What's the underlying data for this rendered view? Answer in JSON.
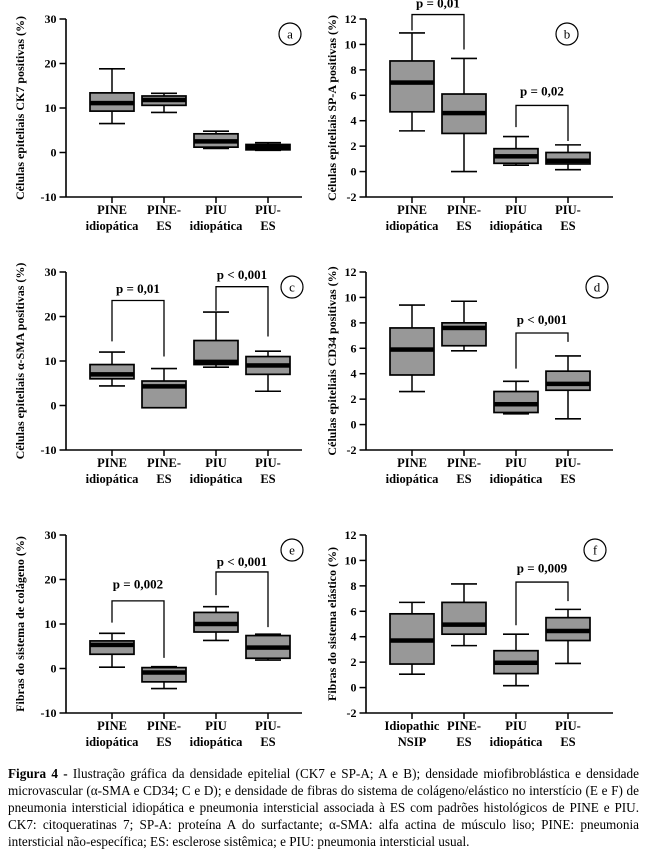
{
  "colors": {
    "box_fill": "#989898",
    "box_stroke": "#000000",
    "median": "#000000",
    "text": "#000000",
    "background": "#ffffff"
  },
  "caption": {
    "label": "Figura 4 -",
    "text": " Ilustração gráfica da densidade epitelial (CK7 e SP-A; A e B); densidade miofibroblástica e densidade microvascular (α-SMA e CD34; C e D); e densidade de fibras do sistema de colágeno/elástico no interstício (E e F) de pneumonia intersticial idiopática e pneumonia intersticial associada à ES com padrões histológicos de PINE e PIU. CK7: citoqueratinas 7; SP-A: proteína A do surfactante; α-SMA: alfa actina de músculo liso; PINE: pneumonia intersticial não-específica; ES: esclerose sistêmica; e PIU: pneumonia intersticial usual."
  },
  "chart_data": [
    {
      "type": "box",
      "panel_label": "a",
      "ylabel": "Células epiteliais CK7 positivas (%)",
      "ylim": [
        -10,
        30
      ],
      "yticks": [
        30,
        20,
        10,
        0,
        -10
      ],
      "categories": [
        [
          "PINE",
          "idiopática"
        ],
        [
          "PINE-",
          "ES"
        ],
        [
          "PIU",
          "idiopática"
        ],
        [
          "PIU-",
          "ES"
        ]
      ],
      "boxes": [
        {
          "low": 6.5,
          "q1": 9.3,
          "median": 11.1,
          "q3": 13.4,
          "high": 18.8
        },
        {
          "low": 9.0,
          "q1": 10.6,
          "median": 11.8,
          "q3": 12.7,
          "high": 13.3
        },
        {
          "low": 0.9,
          "q1": 1.2,
          "median": 2.5,
          "q3": 4.2,
          "high": 4.8
        },
        {
          "low": 0.5,
          "q1": 0.6,
          "median": 1.2,
          "q3": 1.8,
          "high": 2.2
        }
      ],
      "significance": []
    },
    {
      "type": "box",
      "panel_label": "b",
      "ylabel": "Células epiteliais SP-A positivas (%)",
      "ylim": [
        -2,
        12
      ],
      "yticks": [
        12,
        10,
        8,
        6,
        4,
        2,
        0,
        -2
      ],
      "categories": [
        [
          "PINE",
          "idiopática"
        ],
        [
          "PINE-",
          "ES"
        ],
        [
          "PIU",
          "idiopática"
        ],
        [
          "PIU-",
          "ES"
        ]
      ],
      "boxes": [
        {
          "low": 3.2,
          "q1": 4.7,
          "median": 7.0,
          "q3": 8.7,
          "high": 10.9
        },
        {
          "low": 0.0,
          "q1": 3.0,
          "median": 4.6,
          "q3": 6.1,
          "high": 8.9
        },
        {
          "low": 0.5,
          "q1": 0.65,
          "median": 1.2,
          "q3": 1.8,
          "high": 2.75
        },
        {
          "low": 0.15,
          "q1": 0.6,
          "median": 0.85,
          "q3": 1.5,
          "high": 2.1
        }
      ],
      "significance": [
        {
          "from": 0,
          "to": 1,
          "label": "p = 0,01",
          "bar": 12.35,
          "dropFrom": 11.1,
          "dropTo": 9.6,
          "labelV": 12.9
        },
        {
          "from": 2,
          "to": 3,
          "label": "p = 0,02",
          "bar": 5.2,
          "dropFrom": 3.5,
          "dropTo": 2.4,
          "labelV": 6.0
        }
      ]
    },
    {
      "type": "box",
      "panel_label": "c",
      "ylabel": "Células epiteliais α-SMA positivas (%)",
      "ylim": [
        -10,
        30
      ],
      "yticks": [
        30,
        20,
        10,
        0,
        -10
      ],
      "categories": [
        [
          "PINE",
          "idiopática"
        ],
        [
          "PINE-",
          "ES"
        ],
        [
          "PIU",
          "idiopática"
        ],
        [
          "PIU-",
          "ES"
        ]
      ],
      "boxes": [
        {
          "low": 4.4,
          "q1": 6.0,
          "median": 7.0,
          "q3": 9.2,
          "high": 12.0
        },
        {
          "low": -0.5,
          "q1": -0.5,
          "median": 4.3,
          "q3": 5.5,
          "high": 8.3
        },
        {
          "low": 8.6,
          "q1": 9.2,
          "median": 9.8,
          "q3": 14.6,
          "high": 21.0
        },
        {
          "low": 3.2,
          "q1": 7.0,
          "median": 9.0,
          "q3": 11.0,
          "high": 12.2
        }
      ],
      "significance": [
        {
          "from": 0,
          "to": 1,
          "label": "p = 0,01",
          "bar": 23.6,
          "dropFrom": 14.4,
          "dropTo": 11.0,
          "labelV": 25.3
        },
        {
          "from": 2,
          "to": 3,
          "label": "p < 0,001",
          "bar": 26.7,
          "dropFrom": 21.3,
          "dropTo": 15.5,
          "labelV": 28.4
        }
      ]
    },
    {
      "type": "box",
      "panel_label": "d",
      "ylabel": "Células epiteliais CD34 positivas (%)",
      "ylim": [
        -2,
        12
      ],
      "yticks": [
        12,
        10,
        8,
        6,
        4,
        2,
        0,
        -2
      ],
      "categories": [
        [
          "PINE",
          "idiopática"
        ],
        [
          "PINE-",
          "ES"
        ],
        [
          "PIU",
          "idiopática"
        ],
        [
          "PIU-",
          "ES"
        ]
      ],
      "boxes": [
        {
          "low": 2.6,
          "q1": 3.9,
          "median": 5.9,
          "q3": 7.6,
          "high": 9.4
        },
        {
          "low": 5.8,
          "q1": 6.2,
          "median": 7.6,
          "q3": 8.0,
          "high": 9.7
        },
        {
          "low": 0.85,
          "q1": 0.95,
          "median": 1.6,
          "q3": 2.6,
          "high": 3.4
        },
        {
          "low": 0.45,
          "q1": 2.7,
          "median": 3.2,
          "q3": 4.2,
          "high": 5.4
        }
      ],
      "significance": [
        {
          "from": 2,
          "to": 3,
          "label": "p < 0,001",
          "bar": 7.2,
          "dropFrom": 4.4,
          "dropTo": 6.5,
          "labelV": 7.9
        }
      ]
    },
    {
      "type": "box",
      "panel_label": "e",
      "ylabel": "Fibras do sistema de colágeno (%)",
      "ylim": [
        -10,
        30
      ],
      "yticks": [
        30,
        20,
        10,
        0,
        -10
      ],
      "categories": [
        [
          "PINE",
          "idiopática"
        ],
        [
          "PINE-",
          "ES"
        ],
        [
          "PIU",
          "idiopática"
        ],
        [
          "PIU-",
          "ES"
        ]
      ],
      "boxes": [
        {
          "low": 0.3,
          "q1": 3.2,
          "median": 5.3,
          "q3": 6.2,
          "high": 7.9
        },
        {
          "low": -4.5,
          "q1": -3.0,
          "median": -0.9,
          "q3": 0.2,
          "high": 0.4
        },
        {
          "low": 6.3,
          "q1": 8.2,
          "median": 10.0,
          "q3": 12.6,
          "high": 13.9
        },
        {
          "low": 1.9,
          "q1": 2.3,
          "median": 4.7,
          "q3": 7.4,
          "high": 7.7
        }
      ],
      "significance": [
        {
          "from": 0,
          "to": 1,
          "label": "p = 0,002",
          "bar": 15.2,
          "dropFrom": 10.3,
          "dropTo": 2.4,
          "labelV": 18.0
        },
        {
          "from": 2,
          "to": 3,
          "label": "p < 0,001",
          "bar": 21.7,
          "dropFrom": 16.5,
          "dropTo": 9.3,
          "labelV": 23.0
        }
      ]
    },
    {
      "type": "box",
      "panel_label": "f",
      "ylabel": "Fibras do sistema elástico (%)",
      "ylim": [
        -2,
        12
      ],
      "yticks": [
        12,
        10,
        8,
        6,
        4,
        2,
        0,
        -2
      ],
      "categories": [
        [
          "Idiopathic",
          "NSIP"
        ],
        [
          "PINE-",
          "ES"
        ],
        [
          "PIU",
          "idiopática"
        ],
        [
          "PIU-",
          "ES"
        ]
      ],
      "boxes": [
        {
          "low": 1.05,
          "q1": 1.85,
          "median": 3.7,
          "q3": 5.8,
          "high": 6.7
        },
        {
          "low": 3.3,
          "q1": 4.2,
          "median": 4.95,
          "q3": 6.7,
          "high": 8.15
        },
        {
          "low": 0.15,
          "q1": 1.1,
          "median": 1.95,
          "q3": 2.9,
          "high": 4.2
        },
        {
          "low": 1.9,
          "q1": 3.7,
          "median": 4.45,
          "q3": 5.5,
          "high": 6.15
        }
      ],
      "significance": [
        {
          "from": 2,
          "to": 3,
          "label": "p = 0,009",
          "bar": 8.3,
          "dropFrom": 4.9,
          "dropTo": 6.8,
          "labelV": 9.05
        }
      ]
    }
  ]
}
